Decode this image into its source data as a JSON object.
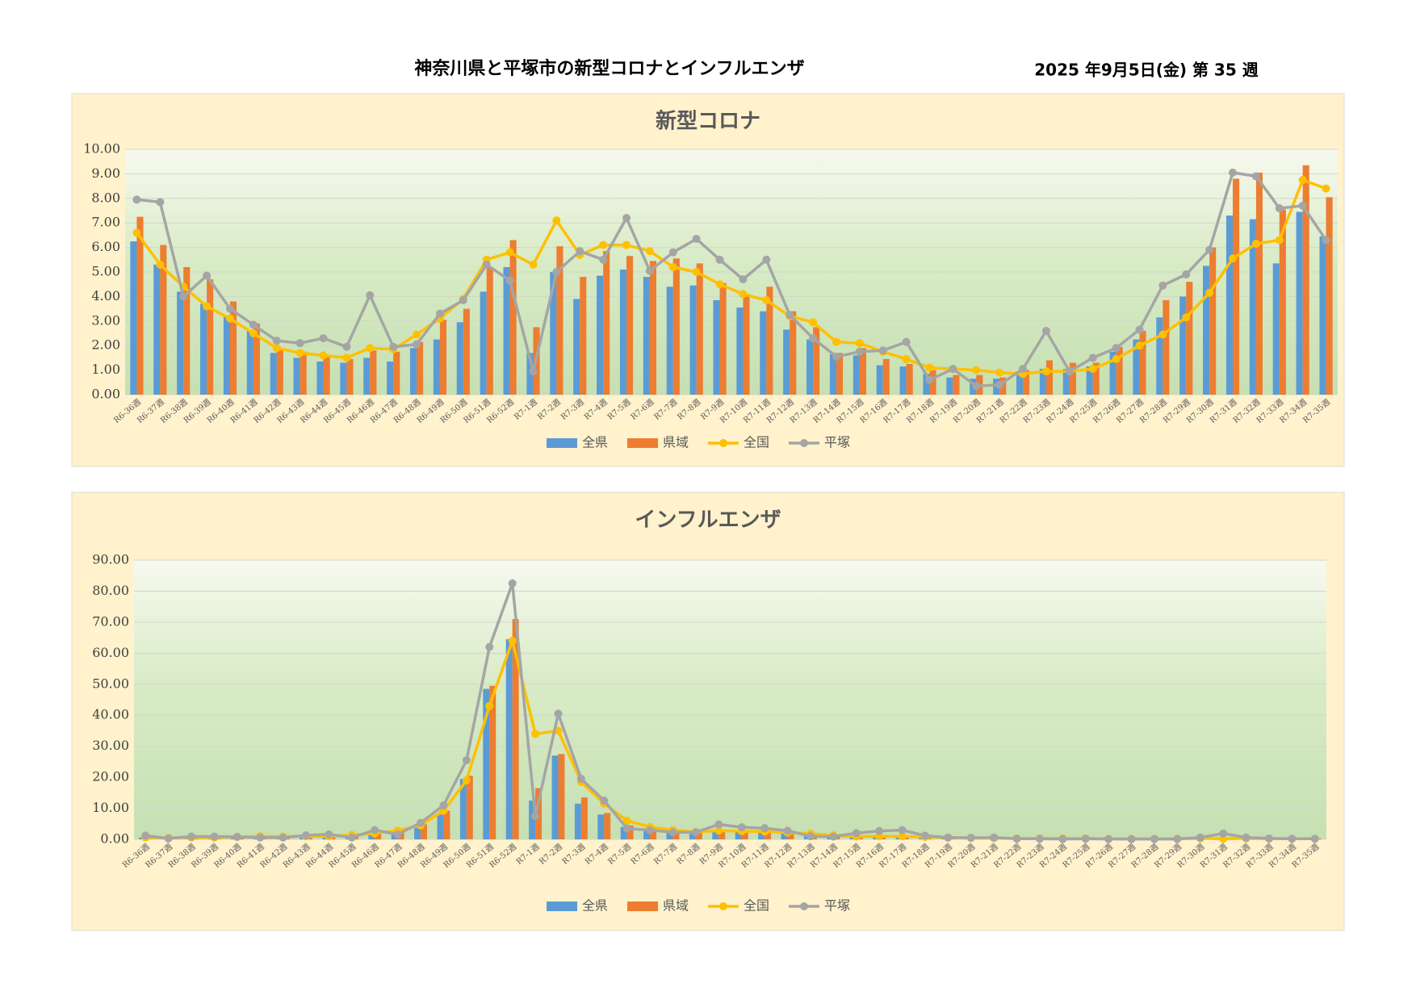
{
  "header": {
    "title": "神奈川県と平塚市の新型コロナとインフルエンザ",
    "date": "2025 年9月5日(金) 第 35 週"
  },
  "chart_data": [
    {
      "type": "bar",
      "title": "新型コロナ",
      "categories": [
        "R6-36週",
        "R6-37週",
        "R6-38週",
        "R6-39週",
        "R6-40週",
        "R6-41週",
        "R6-42週",
        "R6-43週",
        "R6-44週",
        "R6-45週",
        "R6-46週",
        "R6-47週",
        "R6-48週",
        "R6-49週",
        "R6-50週",
        "R6-51週",
        "R6-52週",
        "R7-1週",
        "R7-2週",
        "R7-3週",
        "R7-4週",
        "R7-5週",
        "R7-6週",
        "R7-7週",
        "R7-8週",
        "R7-9週",
        "R7-10週",
        "R7-11週",
        "R7-12週",
        "R7-13週",
        "R7-14週",
        "R7-15週",
        "R7-16週",
        "R7-17週",
        "R7-18週",
        "R7-19週",
        "R7-20週",
        "R7-21週",
        "R7-22週",
        "R7-23週",
        "R7-24週",
        "R7-25週",
        "R7-26週",
        "R7-27週",
        "R7-28週",
        "R7-29週",
        "R7-30週",
        "R7-31週",
        "R7-32週",
        "R7-33週",
        "R7-34週",
        "R7-35週"
      ],
      "series": [
        {
          "name": "全県",
          "type": "bar",
          "color": "#5b9bd5",
          "values": [
            6.25,
            5.3,
            4.2,
            3.7,
            3.2,
            2.6,
            1.7,
            1.5,
            1.35,
            1.3,
            1.5,
            1.35,
            1.9,
            2.25,
            2.95,
            4.2,
            5.2,
            1.7,
            5.0,
            3.9,
            4.85,
            5.1,
            4.8,
            4.4,
            4.45,
            3.85,
            3.55,
            3.4,
            2.65,
            2.25,
            1.65,
            1.6,
            1.2,
            1.15,
            0.85,
            0.7,
            0.65,
            0.65,
            0.8,
            1.05,
            1.05,
            1.15,
            1.75,
            2.25,
            3.15,
            4.0,
            5.25,
            7.3,
            7.15,
            5.35,
            7.45,
            6.45
          ]
        },
        {
          "name": "県域",
          "type": "bar",
          "color": "#ed7d31",
          "values": [
            7.25,
            6.1,
            5.2,
            4.7,
            3.8,
            2.9,
            1.9,
            1.75,
            1.6,
            1.45,
            1.8,
            1.75,
            2.15,
            3.05,
            3.5,
            5.2,
            6.3,
            2.75,
            6.05,
            4.8,
            5.85,
            5.65,
            5.45,
            5.55,
            5.35,
            4.55,
            4.1,
            4.4,
            3.4,
            2.75,
            1.7,
            1.9,
            1.45,
            1.25,
            1.0,
            0.8,
            0.8,
            0.7,
            1.0,
            1.4,
            1.3,
            1.3,
            1.95,
            2.6,
            3.85,
            4.6,
            6.0,
            8.8,
            9.05,
            7.55,
            9.35,
            8.05
          ]
        },
        {
          "name": "全国",
          "type": "line",
          "color": "#ffc000",
          "values": [
            6.6,
            5.3,
            4.4,
            3.6,
            3.1,
            2.5,
            1.9,
            1.7,
            1.6,
            1.5,
            1.9,
            1.85,
            2.45,
            3.1,
            3.9,
            5.5,
            5.8,
            5.3,
            7.1,
            5.7,
            6.1,
            6.1,
            5.85,
            5.2,
            5.0,
            4.5,
            4.1,
            3.85,
            3.2,
            2.95,
            2.15,
            2.1,
            1.75,
            1.45,
            1.1,
            1.05,
            1.0,
            0.9,
            0.85,
            0.95,
            0.95,
            1.05,
            1.45,
            2.0,
            2.45,
            3.15,
            4.15,
            5.55,
            6.15,
            6.3,
            8.75,
            8.4
          ]
        },
        {
          "name": "平塚",
          "type": "line",
          "color": "#a5a5a5",
          "values": [
            7.95,
            7.85,
            4.0,
            4.85,
            3.5,
            2.85,
            2.2,
            2.1,
            2.3,
            1.95,
            4.05,
            1.95,
            2.05,
            3.3,
            3.85,
            5.3,
            4.65,
            0.95,
            5.0,
            5.85,
            5.5,
            7.2,
            5.05,
            5.8,
            6.35,
            5.5,
            4.7,
            5.5,
            3.25,
            2.3,
            1.55,
            1.75,
            1.8,
            2.15,
            0.6,
            1.05,
            0.35,
            0.4,
            1.05,
            2.6,
            0.95,
            1.5,
            1.9,
            2.65,
            4.45,
            4.9,
            5.9,
            9.05,
            8.9,
            7.6,
            7.7,
            6.3
          ]
        }
      ],
      "ylim": [
        0,
        10
      ],
      "yticks": [
        {
          "value": 0,
          "label": "0.00"
        },
        {
          "value": 1,
          "label": "1.00"
        },
        {
          "value": 2,
          "label": "2.00"
        },
        {
          "value": 3,
          "label": "3.00"
        },
        {
          "value": 4,
          "label": "4.00"
        },
        {
          "value": 5,
          "label": "5.00"
        },
        {
          "value": 6,
          "label": "6.00"
        },
        {
          "value": 7,
          "label": "7.00"
        },
        {
          "value": 8,
          "label": "8.00"
        },
        {
          "value": 9,
          "label": "9.00"
        },
        {
          "value": 10,
          "label": "10.00"
        }
      ],
      "grid": true,
      "legend": "bottom"
    },
    {
      "type": "bar",
      "title": "インフルエンザ",
      "categories": [
        "R6-36週",
        "R6-37週",
        "R6-38週",
        "R6-39週",
        "R6-40週",
        "R6-41週",
        "R6-42週",
        "R6-43週",
        "R6-44週",
        "R6-45週",
        "R6-46週",
        "R6-47週",
        "R6-48週",
        "R6-49週",
        "R6-50週",
        "R6-51週",
        "R6-52週",
        "R7-1週",
        "R7-2週",
        "R7-3週",
        "R7-4週",
        "R7-5週",
        "R7-6週",
        "R7-7週",
        "R7-8週",
        "R7-9週",
        "R7-10週",
        "R7-11週",
        "R7-12週",
        "R7-13週",
        "R7-14週",
        "R7-15週",
        "R7-16週",
        "R7-17週",
        "R7-18週",
        "R7-19週",
        "R7-20週",
        "R7-21週",
        "R7-22週",
        "R7-23週",
        "R7-24週",
        "R7-25週",
        "R7-26週",
        "R7-27週",
        "R7-28週",
        "R7-29週",
        "R7-30週",
        "R7-31週",
        "R7-32週",
        "R7-33週",
        "R7-34週",
        "R7-35週"
      ],
      "series": [
        {
          "name": "全県",
          "type": "bar",
          "color": "#5b9bd5",
          "values": [
            0.6,
            0.4,
            0.5,
            0.5,
            0.6,
            0.6,
            0.6,
            0.8,
            0.9,
            0.9,
            2.0,
            2.2,
            4.0,
            8.0,
            19.5,
            48.5,
            64.5,
            12.5,
            27.0,
            11.5,
            8.0,
            4.0,
            3.0,
            2.5,
            2.0,
            2.5,
            2.5,
            2.3,
            2.0,
            1.5,
            1.0,
            0.8,
            0.9,
            0.8,
            0.5,
            0.4,
            0.3,
            0.3,
            0.2,
            0.2,
            0.2,
            0.2,
            0.1,
            0.1,
            0.1,
            0.1,
            0.2,
            0.3,
            0.3,
            0.2,
            0.3,
            0.2
          ]
        },
        {
          "name": "県域",
          "type": "bar",
          "color": "#ed7d31",
          "values": [
            0.8,
            0.5,
            0.6,
            0.6,
            0.8,
            0.8,
            0.8,
            1.0,
            1.1,
            1.1,
            2.4,
            2.6,
            4.8,
            9.3,
            20.5,
            49.5,
            71.0,
            16.5,
            27.5,
            13.5,
            8.5,
            4.5,
            3.5,
            3.0,
            2.4,
            3.0,
            3.0,
            2.8,
            2.5,
            1.8,
            1.2,
            1.0,
            1.2,
            1.1,
            0.7,
            0.5,
            0.4,
            0.4,
            0.3,
            0.3,
            0.2,
            0.2,
            0.2,
            0.2,
            0.2,
            0.2,
            0.3,
            0.4,
            0.4,
            0.3,
            0.3,
            0.3
          ]
        },
        {
          "name": "全国",
          "type": "line",
          "color": "#ffc000",
          "values": [
            0.6,
            0.5,
            0.6,
            0.6,
            0.8,
            1.0,
            0.9,
            1.0,
            1.0,
            1.4,
            1.9,
            2.8,
            4.5,
            9.2,
            19.0,
            43.0,
            64.0,
            34.0,
            35.0,
            18.5,
            11.5,
            6.0,
            4.0,
            3.0,
            2.4,
            2.8,
            2.6,
            2.5,
            2.2,
            1.8,
            1.3,
            0.9,
            1.0,
            1.0,
            0.8,
            0.6,
            0.5,
            0.4,
            0.3,
            0.3,
            0.3,
            0.3,
            0.2,
            0.2,
            0.2,
            0.2,
            0.3,
            0.2,
            0.3,
            0.2,
            0.2,
            0.2
          ]
        },
        {
          "name": "平塚",
          "type": "line",
          "color": "#a5a5a5",
          "values": [
            1.2,
            0.3,
            0.9,
            0.9,
            0.8,
            0.6,
            0.6,
            1.3,
            1.6,
            0.6,
            3.0,
            1.6,
            5.3,
            11.0,
            25.5,
            62.0,
            82.5,
            7.5,
            40.5,
            19.5,
            12.5,
            3.5,
            3.0,
            2.3,
            2.3,
            4.8,
            3.9,
            3.6,
            2.8,
            1.0,
            0.9,
            2.0,
            2.7,
            3.0,
            1.2,
            0.6,
            0.5,
            0.6,
            0.2,
            0.2,
            0.1,
            0.2,
            0.1,
            0.1,
            0.1,
            0.1,
            0.6,
            1.9,
            0.6,
            0.3,
            0.2,
            0.2
          ]
        }
      ],
      "ylim": [
        0,
        90
      ],
      "yticks": [
        {
          "value": 0,
          "label": "0.00"
        },
        {
          "value": 10,
          "label": "10.00"
        },
        {
          "value": 20,
          "label": "20.00"
        },
        {
          "value": 30,
          "label": "30.00"
        },
        {
          "value": 40,
          "label": "40.00"
        },
        {
          "value": 50,
          "label": "50.00"
        },
        {
          "value": 60,
          "label": "60.00"
        },
        {
          "value": 70,
          "label": "70.00"
        },
        {
          "value": 80,
          "label": "80.00"
        },
        {
          "value": 90,
          "label": "90.00"
        }
      ],
      "grid": true,
      "legend": "bottom"
    }
  ]
}
